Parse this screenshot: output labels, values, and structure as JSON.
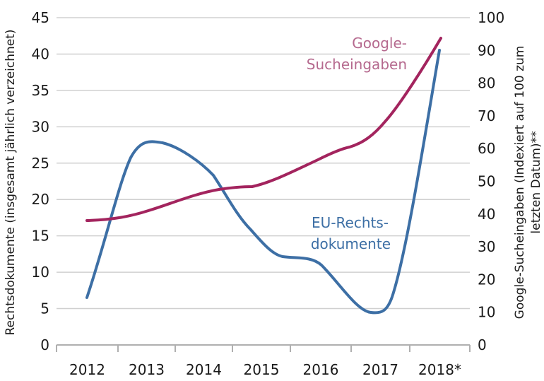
{
  "chart_data": {
    "type": "line",
    "title": "",
    "xlabel": "",
    "ylabel_left": "Rechtsdokumente (insgesamt jährlich verzeichnet)",
    "ylabel_right_line1": "Google-Sucheingaben (Indexiert auf 100 zum",
    "ylabel_right_line2": "letzten Datum)**",
    "categories": [
      "2012",
      "2013",
      "2014",
      "2015",
      "2016",
      "2017",
      "2018*"
    ],
    "ylim_left": [
      0,
      45
    ],
    "yticks_left": [
      "0",
      "5",
      "10",
      "15",
      "20",
      "25",
      "30",
      "35",
      "40",
      "45"
    ],
    "ylim_right": [
      0,
      100
    ],
    "yticks_right": [
      "0",
      "10",
      "20",
      "30",
      "40",
      "50",
      "60",
      "70",
      "80",
      "90",
      "100"
    ],
    "grid": true,
    "legend_position": "inline labels",
    "series": [
      {
        "name": "EU-Rechtsdokumente",
        "label_line1": "EU-Rechts-",
        "label_line2": "dokumente",
        "axis": "left",
        "color": "#3d6fa5",
        "values": [
          6.4,
          25.7,
          23.2,
          12.2,
          11.0,
          4.7,
          40.6
        ],
        "annotated_peak": {
          "x": "mid-2013",
          "value": 27.8
        }
      },
      {
        "name": "Google-Sucheingaben",
        "label_line1": "Google-",
        "label_line2": "Sucheingaben",
        "axis": "right",
        "color": "#a3245e",
        "label_color": "#b5698e",
        "values": [
          38.0,
          40.6,
          47.1,
          48.0,
          59.8,
          64.3,
          93.5
        ]
      }
    ]
  },
  "colors": {
    "grid": "#d0d0d0",
    "axis": "#b0b0b0",
    "text": "#1a1a1a",
    "eu_line": "#3d6fa5",
    "google_line": "#a3245e",
    "google_label": "#b5698e"
  }
}
